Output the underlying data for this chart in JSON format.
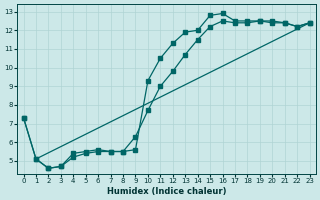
{
  "xlabel": "Humidex (Indice chaleur)",
  "bg_color": "#cce8e8",
  "grid_color": "#b0d4d4",
  "line_color": "#006666",
  "xlim": [
    -0.5,
    23.5
  ],
  "ylim": [
    4.3,
    13.4
  ],
  "xticks": [
    0,
    1,
    2,
    3,
    4,
    5,
    6,
    7,
    8,
    9,
    10,
    11,
    12,
    13,
    14,
    15,
    16,
    17,
    18,
    19,
    20,
    21,
    22,
    23
  ],
  "yticks": [
    5,
    6,
    7,
    8,
    9,
    10,
    11,
    12,
    13
  ],
  "line1_x": [
    0,
    1,
    2,
    3,
    4,
    5,
    6,
    7,
    8,
    9,
    10,
    11,
    12,
    13,
    14,
    15,
    16,
    17,
    18,
    19,
    20,
    21,
    22,
    23
  ],
  "line1_y": [
    7.3,
    5.1,
    4.6,
    4.7,
    5.4,
    5.5,
    5.6,
    5.5,
    5.5,
    5.6,
    9.3,
    10.5,
    11.3,
    11.9,
    12.0,
    12.8,
    12.9,
    12.5,
    12.5,
    12.5,
    12.4,
    12.4,
    12.2,
    12.4
  ],
  "line2_x": [
    0,
    1,
    2,
    3,
    4,
    5,
    6,
    7,
    8,
    9,
    10,
    11,
    12,
    13,
    14,
    15,
    16,
    17,
    18,
    19,
    20,
    21,
    22,
    23
  ],
  "line2_y": [
    7.3,
    5.1,
    4.6,
    4.7,
    5.2,
    5.4,
    5.5,
    5.5,
    5.5,
    6.3,
    7.7,
    9.0,
    9.8,
    10.7,
    11.5,
    12.2,
    12.5,
    12.4,
    12.4,
    12.5,
    12.5,
    12.4,
    12.2,
    12.4
  ],
  "line3_x": [
    1,
    23
  ],
  "line3_y": [
    5.1,
    12.4
  ],
  "marker_size": 2.5,
  "line_width": 0.9
}
